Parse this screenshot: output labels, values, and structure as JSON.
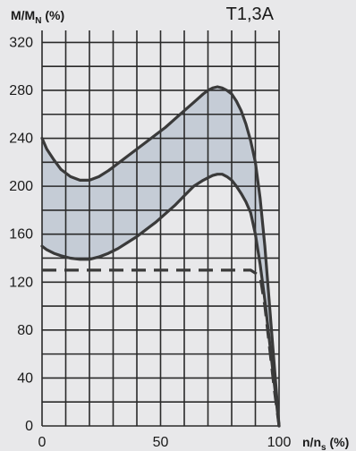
{
  "chart_data": {
    "type": "area",
    "title": "T1,3A",
    "ylabel": {
      "main": "M/M",
      "sub": "N",
      "unit": " (%)"
    },
    "xlabel": {
      "main": "n/n",
      "sub": "s",
      "unit": " (%)"
    },
    "xlim": [
      0,
      100
    ],
    "ylim": [
      0,
      330
    ],
    "x_ticks": [
      0,
      50,
      100
    ],
    "y_ticks": [
      0,
      40,
      80,
      120,
      160,
      200,
      240,
      280,
      320
    ],
    "grid": true,
    "colors": {
      "background": "#e8e8ea",
      "band_fill": "#c5ccd6",
      "curve": "#3a3a3a",
      "grid": "#2a2a2a"
    },
    "series": [
      {
        "role": "upper",
        "x": [
          0,
          2,
          5,
          8,
          12,
          16,
          20,
          24,
          28,
          32,
          36,
          40,
          44,
          48,
          52,
          56,
          60,
          64,
          68,
          70,
          72,
          74,
          76,
          78,
          80,
          82,
          84,
          86,
          88,
          90,
          92,
          94,
          96,
          98,
          100
        ],
        "y": [
          240,
          231,
          222,
          214,
          208,
          205,
          205,
          208,
          213,
          219,
          225,
          231,
          237,
          243,
          249,
          256,
          263,
          270,
          277,
          280,
          282,
          283,
          282,
          280,
          277,
          271,
          263,
          252,
          238,
          220,
          190,
          150,
          100,
          50,
          0
        ]
      },
      {
        "role": "lower",
        "x": [
          0,
          2,
          5,
          8,
          12,
          16,
          20,
          24,
          28,
          32,
          36,
          40,
          44,
          48,
          52,
          56,
          60,
          64,
          68,
          70,
          72,
          74,
          76,
          78,
          80,
          82,
          84,
          86,
          88,
          90,
          92,
          94,
          96,
          98,
          100
        ],
        "y": [
          150,
          147,
          144,
          142,
          140,
          139,
          139,
          141,
          144,
          148,
          153,
          158,
          164,
          170,
          177,
          184,
          192,
          200,
          205,
          207,
          209,
          210,
          210,
          208,
          205,
          200,
          194,
          187,
          178,
          160,
          135,
          105,
          70,
          35,
          0
        ]
      },
      {
        "role": "dashed",
        "x": [
          0,
          30,
          60,
          88,
          92,
          94,
          96,
          98,
          100
        ],
        "y": [
          130,
          130,
          130,
          130,
          125,
          100,
          65,
          30,
          0
        ]
      }
    ]
  }
}
